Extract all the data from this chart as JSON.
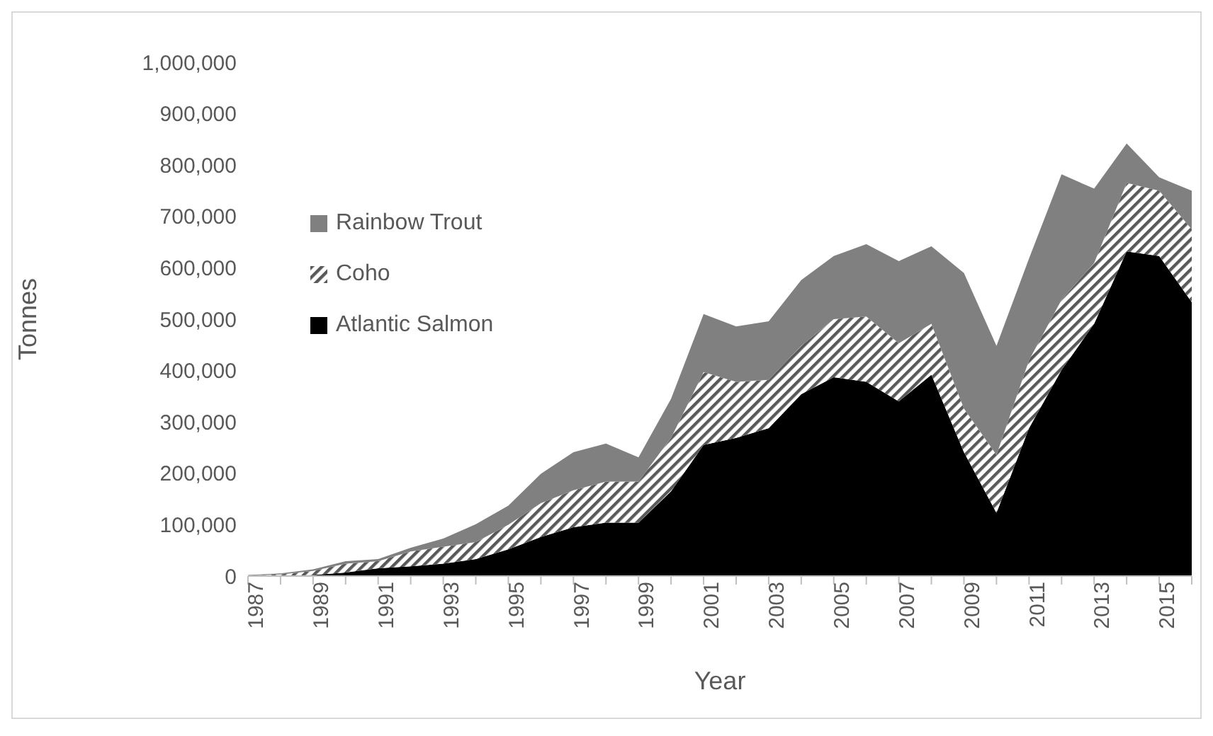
{
  "chart_data": {
    "type": "area",
    "stacked": true,
    "xlabel": "Year",
    "ylabel": "Tonnes",
    "categories": [
      "1987",
      null,
      "1989",
      null,
      "1991",
      null,
      "1993",
      null,
      "1995",
      null,
      "1997",
      null,
      "1999",
      null,
      "2001",
      null,
      "2003",
      null,
      "2005",
      null,
      "2007",
      null,
      "2009",
      null,
      "2011",
      null,
      "2013",
      null,
      "2015",
      null
    ],
    "series": [
      {
        "name": "Atlantic Salmon",
        "color": "#000000",
        "values": [
          0,
          0,
          2000,
          7000,
          15000,
          19000,
          24000,
          33000,
          52000,
          76000,
          95000,
          104000,
          104000,
          165000,
          255000,
          269000,
          288000,
          354000,
          387000,
          378000,
          340000,
          392000,
          241000,
          123000,
          288000,
          401000,
          491000,
          632000,
          623000,
          533000
        ]
      },
      {
        "name": "Coho",
        "color": "#595959",
        "values": [
          1000,
          3000,
          8000,
          17000,
          14000,
          29000,
          33000,
          33000,
          48000,
          66000,
          72000,
          80000,
          80000,
          104000,
          142000,
          109000,
          94000,
          94000,
          113000,
          127000,
          113000,
          99000,
          85000,
          113000,
          132000,
          137000,
          118000,
          133000,
          127000,
          142000
        ]
      },
      {
        "name": "Rainbow Trout",
        "color": "#808080",
        "values": [
          1000,
          2000,
          3000,
          5000,
          4000,
          7000,
          16000,
          35000,
          37000,
          57000,
          74000,
          74000,
          47000,
          76000,
          113000,
          108000,
          114000,
          128000,
          123000,
          141000,
          160000,
          151000,
          264000,
          212000,
          198000,
          244000,
          145000,
          77000,
          26000,
          75000
        ]
      }
    ],
    "ylim": [
      0,
      1000000
    ],
    "yticks": [
      0,
      {
        "value": 100000,
        "label": "100,000"
      },
      {
        "value": 200000,
        "label": "200,000"
      },
      {
        "value": 300000,
        "label": "300,000"
      },
      {
        "value": 400000,
        "label": "400,000"
      },
      {
        "value": 500000,
        "label": "500,000"
      },
      {
        "value": 600000,
        "label": "600,000"
      },
      {
        "value": 700000,
        "label": "700,000"
      },
      {
        "value": 800000,
        "label": "800,000"
      },
      {
        "value": 900000,
        "label": "900,000"
      },
      {
        "value": 1000000,
        "label": "1,000,000"
      }
    ],
    "grid": false,
    "legend": "left"
  }
}
